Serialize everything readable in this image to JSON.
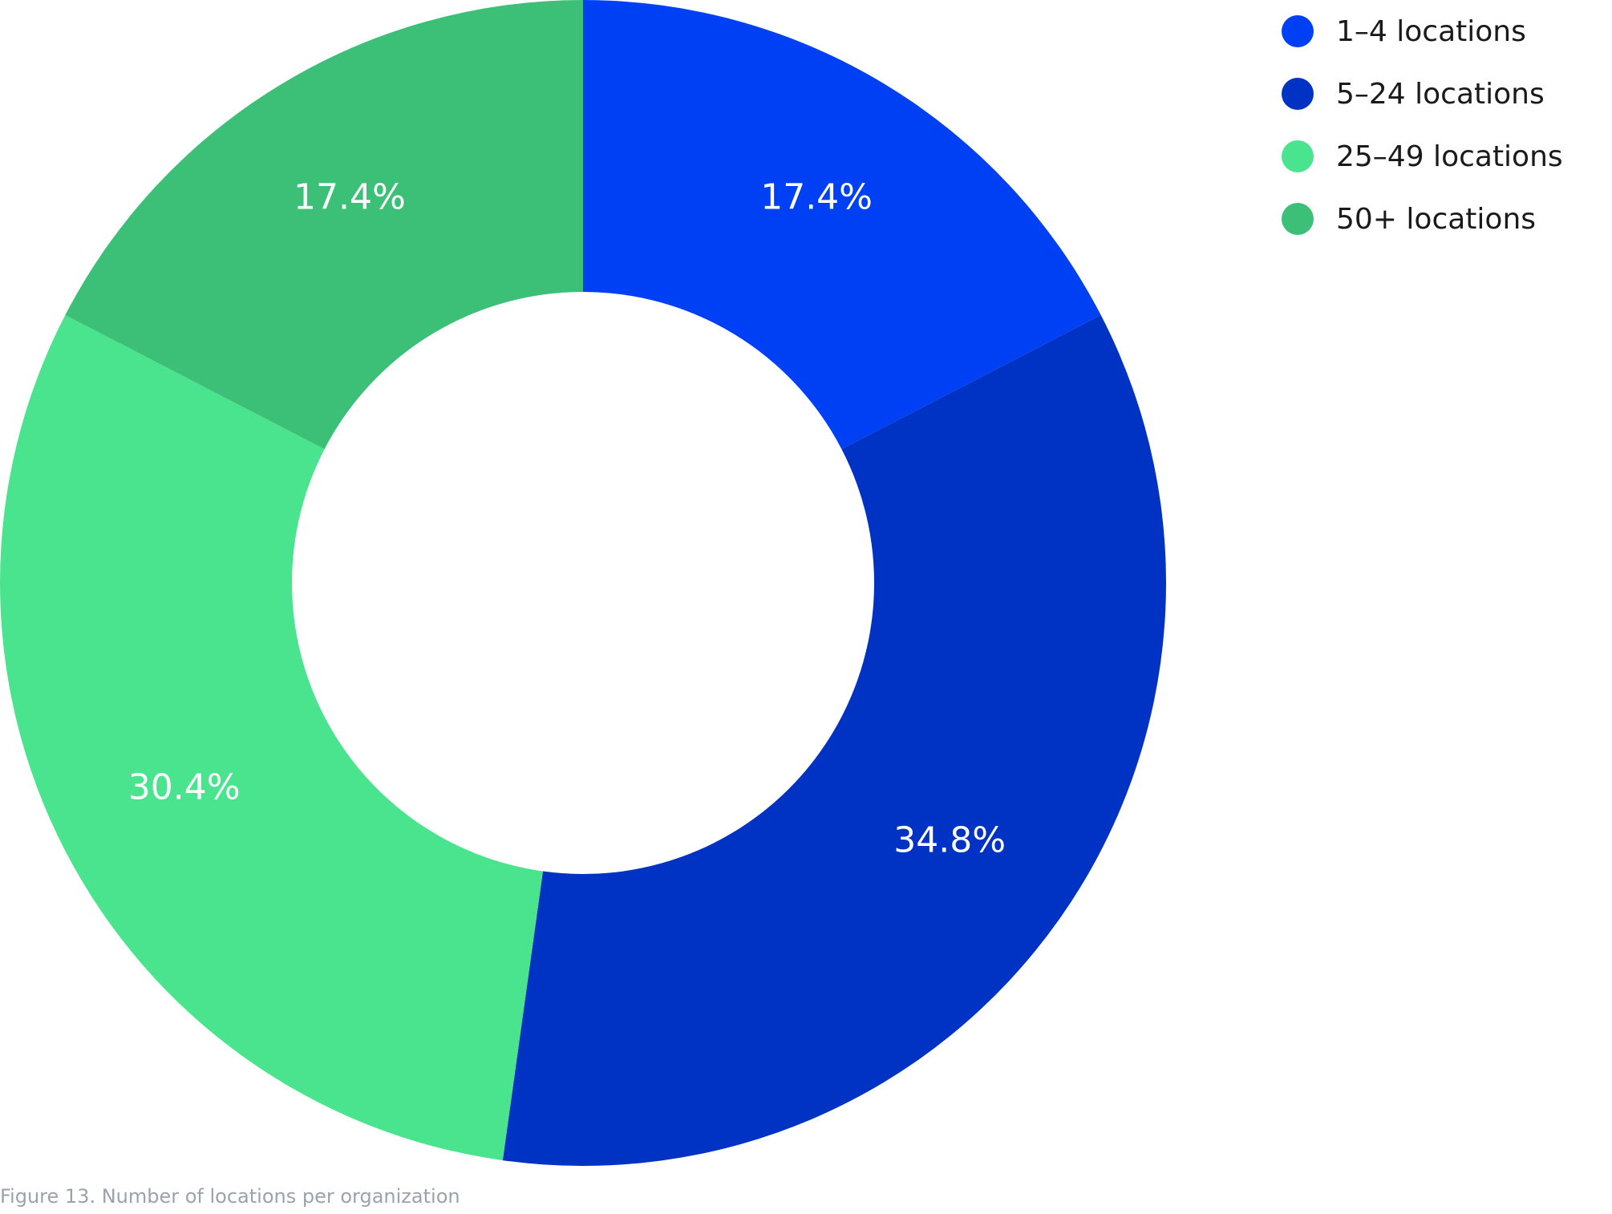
{
  "chart_data": {
    "type": "pie",
    "donut": true,
    "categories": [
      "1–4 locations",
      "5–24 locations",
      "25–49 locations",
      "50+ locations"
    ],
    "values": [
      17.4,
      34.8,
      30.4,
      17.4
    ],
    "labels": [
      "17.4%",
      "34.8%",
      "30.4%",
      "17.4%"
    ],
    "colors": [
      "#0040f5",
      "#0033c4",
      "#4be48e",
      "#3cbf77"
    ],
    "legend_position": "top-right",
    "start": "12 o'clock",
    "direction": "clockwise"
  },
  "caption": "Figure 13. Number of locations per organization"
}
